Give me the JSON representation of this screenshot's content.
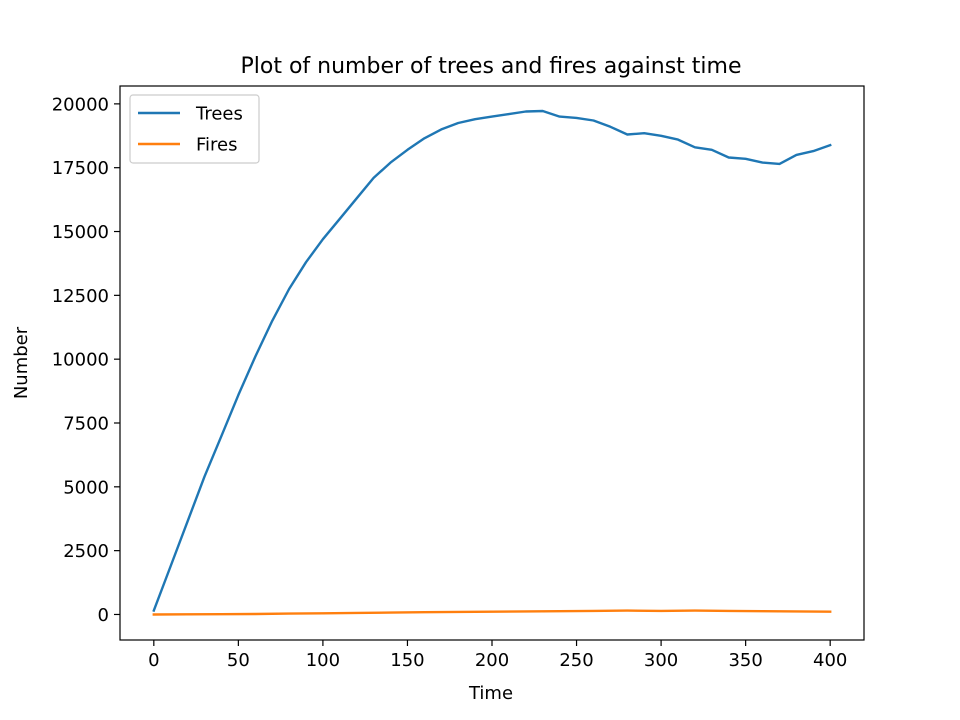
{
  "chart_data": {
    "type": "line",
    "title": "Plot of number of trees and fires against time",
    "xlabel": "Time",
    "ylabel": "Number",
    "xlim": [
      -20,
      420
    ],
    "ylim": [
      -1000,
      20700
    ],
    "x_ticks": [
      0,
      50,
      100,
      150,
      200,
      250,
      300,
      350,
      400
    ],
    "y_ticks": [
      0,
      2500,
      5000,
      7500,
      10000,
      12500,
      15000,
      17500,
      20000
    ],
    "grid": false,
    "legend_position": "top-left",
    "series": [
      {
        "name": "Trees",
        "color": "#1f77b4",
        "x": [
          0,
          10,
          20,
          30,
          40,
          50,
          60,
          70,
          80,
          90,
          100,
          110,
          120,
          130,
          140,
          150,
          160,
          170,
          180,
          190,
          200,
          210,
          220,
          230,
          240,
          250,
          260,
          270,
          280,
          290,
          300,
          310,
          320,
          330,
          340,
          350,
          360,
          370,
          380,
          390,
          400
        ],
        "values": [
          150,
          1900,
          3650,
          5400,
          7000,
          8600,
          10100,
          11500,
          12750,
          13800,
          14700,
          15500,
          16300,
          17100,
          17700,
          18200,
          18650,
          19000,
          19250,
          19400,
          19500,
          19600,
          19700,
          19720,
          19500,
          19450,
          19350,
          19100,
          18800,
          18850,
          18750,
          18600,
          18300,
          18200,
          17900,
          17850,
          17700,
          17650,
          18000,
          18150,
          18380
        ]
      },
      {
        "name": "Fires",
        "color": "#ff7f0e",
        "x": [
          0,
          20,
          40,
          60,
          80,
          100,
          120,
          140,
          160,
          180,
          200,
          220,
          240,
          260,
          280,
          300,
          320,
          340,
          360,
          380,
          400
        ],
        "values": [
          0,
          5,
          10,
          20,
          35,
          45,
          60,
          75,
          90,
          100,
          110,
          120,
          130,
          140,
          150,
          140,
          150,
          140,
          130,
          120,
          110
        ]
      }
    ]
  }
}
